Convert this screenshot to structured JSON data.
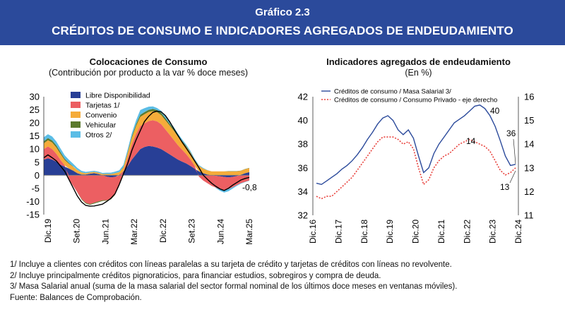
{
  "header": {
    "number": "Gráfico 2.3",
    "title": "CRÉDITOS DE CONSUMO E INDICADORES AGREGADOS DE ENDEUDAMIENTO"
  },
  "left_panel": {
    "title": "Colocaciones de Consumo",
    "subtitle": "(Contribución por producto a la var % doce meses)"
  },
  "right_panel": {
    "title": "Indicadores agregados de endeudamiento",
    "subtitle": "(En %)"
  },
  "footnotes": [
    "1/ Incluye a clientes con créditos con líneas paralelas a su tarjeta de crédito y tarjetas de créditos con líneas no revolvente.",
    "2/ Incluye principalmente créditos pignoraticios, para financiar estudios, sobregiros y compra de deuda.",
    "3/ Masa Salarial anual (suma de la masa salarial del sector formal nominal de los últimos doce meses en ventanas móviles).",
    "Fuente: Balances de Comprobación."
  ],
  "colors": {
    "banner": "#2b4a9b",
    "libre": "#283f96",
    "tarjetas": "#ec5f62",
    "convenio": "#f5ac3a",
    "vehicular": "#5b7a2e",
    "otros": "#5bbde6",
    "total_line": "#000000",
    "masa": "#2b4a9b",
    "consumo": "#e8413c"
  },
  "chart_data": [
    {
      "type": "area",
      "stacked": true,
      "x_tick_labels": [
        "Dic.19",
        "Set.20",
        "Jun.21",
        "Mar.22",
        "Dic.22",
        "Set.23",
        "Jun.24",
        "Mar.25"
      ],
      "ylim": [
        -15,
        30
      ],
      "y_ticks": [
        -15,
        -10,
        -5,
        0,
        5,
        10,
        15,
        20,
        25,
        30
      ],
      "legend_position": "top-center",
      "series": [
        {
          "name": "Libre Disponibilidad",
          "color_key": "libre",
          "values": [
            6.0,
            6.5,
            6.0,
            5.2,
            4.0,
            3.3,
            2.6,
            1.8,
            0.8,
            0.3,
            0.3,
            0.6,
            0.8,
            0.5,
            0.0,
            -0.5,
            -0.8,
            -0.6,
            0.2,
            1.5,
            3.5,
            6.0,
            8.0,
            10.0,
            10.8,
            11.2,
            11.0,
            10.6,
            10.0,
            9.0,
            8.0,
            7.0,
            6.0,
            5.2,
            4.5,
            3.5,
            2.5,
            1.5,
            0.8,
            0.3,
            0.0,
            -0.2,
            -0.4,
            -0.6,
            -0.8,
            -0.6,
            -0.3,
            0.2,
            0.8,
            1.2
          ]
        },
        {
          "name": "Tarjetas 1/",
          "color_key": "tarjetas",
          "values": [
            4.0,
            4.5,
            4.0,
            3.0,
            1.8,
            0.5,
            -1.5,
            -4.0,
            -6.5,
            -9.0,
            -10.5,
            -11.0,
            -10.5,
            -10.0,
            -9.5,
            -9.0,
            -8.2,
            -6.8,
            -4.0,
            0.0,
            3.0,
            5.8,
            7.8,
            8.8,
            9.0,
            9.5,
            10.0,
            10.0,
            9.5,
            8.5,
            7.5,
            6.5,
            5.5,
            4.5,
            3.5,
            2.5,
            1.0,
            -0.5,
            -2.0,
            -3.0,
            -4.0,
            -4.5,
            -5.0,
            -5.0,
            -4.5,
            -4.0,
            -3.5,
            -3.0,
            -2.5,
            -2.0
          ]
        },
        {
          "name": "Convenio",
          "color_key": "convenio",
          "values": [
            2.2,
            2.4,
            2.5,
            2.4,
            2.3,
            2.0,
            1.8,
            1.5,
            1.2,
            0.8,
            0.5,
            0.5,
            0.5,
            0.5,
            0.5,
            0.5,
            0.5,
            0.8,
            1.0,
            1.5,
            2.0,
            2.5,
            3.0,
            3.5,
            3.5,
            3.5,
            3.5,
            3.5,
            3.5,
            3.5,
            3.5,
            3.5,
            3.2,
            3.0,
            2.8,
            2.5,
            2.2,
            2.0,
            1.8,
            1.6,
            1.5,
            1.5,
            1.5,
            1.5,
            1.5,
            1.5,
            1.5,
            1.5,
            1.5,
            1.5
          ]
        },
        {
          "name": "Vehicular",
          "color_key": "vehicular",
          "values": [
            0.8,
            0.8,
            0.8,
            0.8,
            0.7,
            0.5,
            0.3,
            0.1,
            -0.1,
            -0.2,
            -0.3,
            -0.3,
            -0.3,
            -0.3,
            -0.3,
            -0.2,
            -0.2,
            -0.1,
            0.0,
            0.2,
            0.4,
            0.6,
            0.7,
            0.8,
            0.8,
            0.8,
            0.8,
            0.8,
            0.8,
            0.8,
            0.7,
            0.6,
            0.5,
            0.4,
            0.3,
            0.2,
            0.1,
            0.1,
            0.0,
            0.0,
            0.0,
            0.0,
            0.0,
            0.0,
            0.1,
            0.1,
            0.1,
            0.1,
            0.1,
            0.1
          ]
        },
        {
          "name": "Otros 2/",
          "color_key": "otros",
          "values": [
            1.5,
            1.5,
            1.5,
            1.5,
            1.4,
            1.3,
            1.2,
            1.0,
            0.8,
            0.6,
            0.5,
            0.4,
            0.4,
            0.4,
            0.4,
            0.5,
            0.5,
            0.6,
            0.7,
            0.8,
            1.0,
            1.2,
            1.5,
            1.8,
            1.5,
            1.2,
            1.0,
            0.8,
            0.8,
            0.8,
            0.8,
            0.8,
            0.7,
            0.6,
            0.5,
            0.5,
            0.4,
            0.3,
            0.2,
            0.1,
            0.0,
            -0.2,
            -0.5,
            -1.0,
            -0.8,
            -0.5,
            -0.3,
            -0.2,
            -0.1,
            -0.1
          ]
        }
      ],
      "total_line": [
        6.7,
        7.8,
        6.7,
        5.5,
        3.5,
        1.5,
        -1.6,
        -4.8,
        -7.9,
        -10.2,
        -11.5,
        -11.8,
        -11.7,
        -11.4,
        -11.0,
        -10.0,
        -8.8,
        -7.0,
        -3.5,
        0.5,
        4.5,
        9.5,
        13.5,
        17.0,
        20.5,
        22.5,
        24.0,
        24.5,
        24.2,
        22.8,
        20.5,
        17.8,
        15.2,
        12.6,
        10.3,
        7.9,
        5.4,
        2.9,
        0.1,
        -1.5,
        -3.0,
        -4.2,
        -5.2,
        -5.8,
        -5.0,
        -3.8,
        -2.8,
        -1.8,
        -1.2,
        -0.8
      ],
      "annotations": [
        "-0,8"
      ]
    },
    {
      "type": "line",
      "x_tick_labels": [
        "Dic.16",
        "Dic.17",
        "Dic.18",
        "Dic.19",
        "Dic.20",
        "Dic.21",
        "Dic.22",
        "Dic.23",
        "Dic.24"
      ],
      "y_left": {
        "lim": [
          32,
          42
        ],
        "ticks": [
          32,
          34,
          36,
          38,
          40,
          42
        ]
      },
      "y_right": {
        "lim": [
          11,
          16
        ],
        "ticks": [
          11,
          12,
          13,
          14,
          15,
          16
        ]
      },
      "legend_position": "top-left",
      "series": [
        {
          "name": "Créditos de consumo / Masa Salarial 3/",
          "axis": "left",
          "style": "solid",
          "color_key": "masa",
          "values": [
            34.7,
            34.6,
            34.9,
            35.2,
            35.5,
            35.9,
            36.2,
            36.6,
            37.1,
            37.7,
            38.4,
            39.0,
            39.7,
            40.2,
            40.4,
            40.0,
            39.2,
            38.8,
            39.2,
            38.5,
            37.0,
            35.6,
            36.0,
            37.2,
            38.0,
            38.6,
            39.2,
            39.8,
            40.1,
            40.4,
            40.8,
            41.2,
            41.3,
            41.0,
            40.4,
            39.5,
            38.3,
            37.0,
            36.2,
            36.3
          ]
        },
        {
          "name": "Créditos de consumo / Consumo Privado - eje derecho",
          "axis": "right",
          "style": "dotted",
          "color_key": "consumo",
          "values": [
            11.8,
            11.7,
            11.8,
            11.8,
            12.0,
            12.2,
            12.4,
            12.6,
            12.9,
            13.2,
            13.5,
            13.8,
            14.1,
            14.3,
            14.3,
            14.3,
            14.2,
            14.0,
            14.1,
            13.8,
            13.0,
            12.3,
            12.5,
            13.0,
            13.3,
            13.5,
            13.6,
            13.8,
            14.0,
            14.1,
            14.2,
            14.1,
            14.0,
            13.9,
            13.7,
            13.3,
            12.9,
            12.7,
            12.8,
            13.0
          ]
        }
      ],
      "annotations": [
        "40",
        "14",
        "36",
        "13"
      ]
    }
  ]
}
